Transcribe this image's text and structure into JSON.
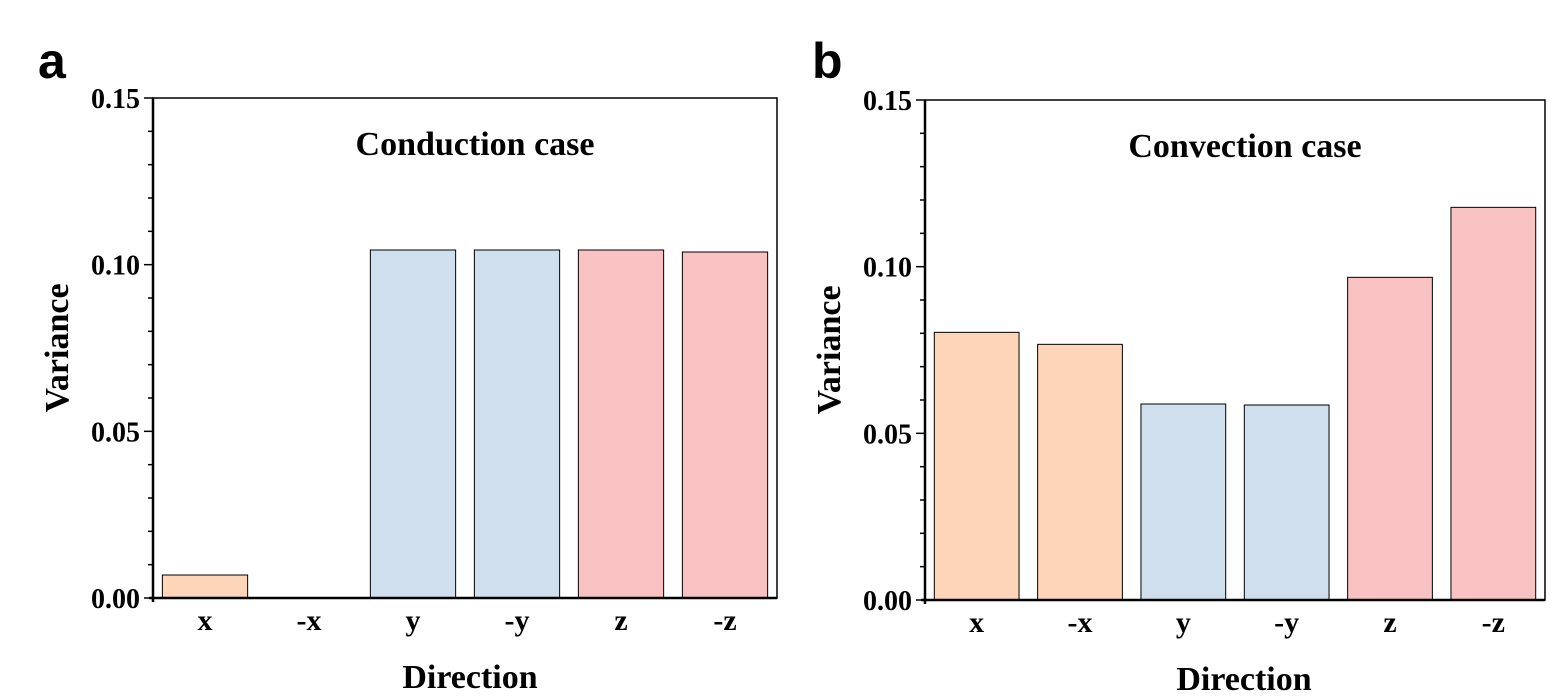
{
  "chart_data": [
    {
      "type": "bar",
      "panel_label": "a",
      "title": "Conduction case",
      "xlabel": "Direction",
      "ylabel": "Variance",
      "categories": [
        "x",
        "-x",
        "y",
        "-y",
        "z",
        "-z"
      ],
      "values": [
        0.0069,
        0.0,
        0.1044,
        0.1044,
        0.1044,
        0.1038
      ],
      "colors": [
        "#FDD5B8",
        "#FDD5B8",
        "#CFDFEE",
        "#CFDFEE",
        "#F8C2C3",
        "#F8C2C3"
      ],
      "ylim": [
        0,
        0.15
      ],
      "yticks": [
        "0.00",
        "0.05",
        "0.10",
        "0.15"
      ],
      "grid": false
    },
    {
      "type": "bar",
      "panel_label": "b",
      "title": "Convection case",
      "xlabel": "Direction",
      "ylabel": "Variance",
      "categories": [
        "x",
        "-x",
        "y",
        "-y",
        "z",
        "-z"
      ],
      "values": [
        0.0803,
        0.0767,
        0.0588,
        0.0585,
        0.0968,
        0.1178
      ],
      "colors": [
        "#FDD5B8",
        "#FDD5B8",
        "#CFDFEE",
        "#CFDFEE",
        "#F8C2C3",
        "#F8C2C3"
      ],
      "ylim": [
        0,
        0.15
      ],
      "yticks": [
        "0.00",
        "0.05",
        "0.10",
        "0.15"
      ],
      "grid": false
    }
  ]
}
